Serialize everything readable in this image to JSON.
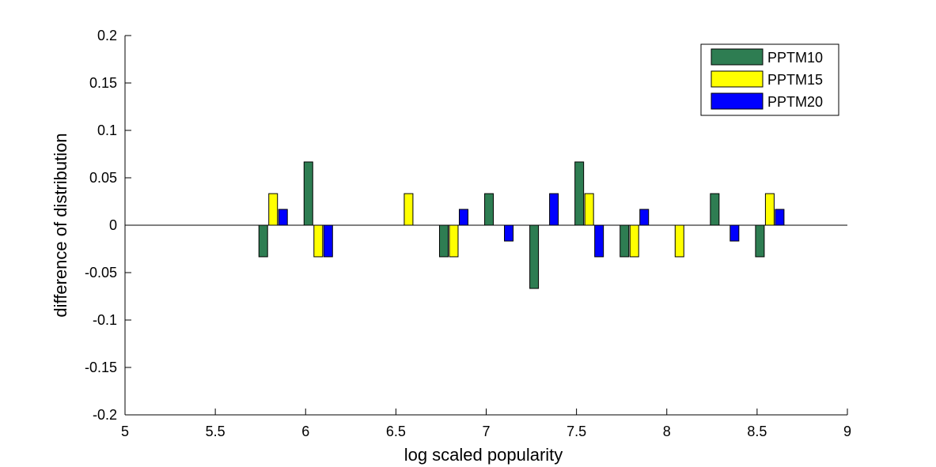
{
  "chart_data": {
    "type": "bar",
    "xlabel": "log scaled popularity",
    "ylabel": "difference of distribution",
    "xlim": [
      5,
      9
    ],
    "ylim": [
      -0.2,
      0.2
    ],
    "xticks": [
      5,
      5.5,
      6,
      6.5,
      7,
      7.5,
      8,
      8.5,
      9
    ],
    "yticks": [
      -0.2,
      -0.15,
      -0.1,
      -0.05,
      0,
      0.05,
      0.1,
      0.15,
      0.2
    ],
    "xtick_labels": [
      "5",
      "5.5",
      "6",
      "6.5",
      "7",
      "7.5",
      "8",
      "8.5",
      "9"
    ],
    "ytick_labels": [
      "-0.2",
      "-0.15",
      "-0.1",
      "-0.05",
      "0",
      "0.05",
      "0.1",
      "0.15",
      "0.2"
    ],
    "grid": false,
    "legend_position": "top-right",
    "x": [
      5.875,
      6.125,
      6.375,
      6.625,
      6.875,
      7.125,
      7.375,
      7.625,
      7.875,
      8.125,
      8.375,
      8.625
    ],
    "series": [
      {
        "name": "PPTM10",
        "color": "#2e7d52",
        "values": [
          -0.0333,
          0.0667,
          0,
          0,
          -0.0333,
          0.0333,
          -0.0667,
          0.0667,
          -0.0333,
          0,
          0.0333,
          -0.0333
        ]
      },
      {
        "name": "PPTM15",
        "color": "#ffff00",
        "values": [
          0.0333,
          -0.0333,
          0,
          0.0333,
          -0.0333,
          0,
          0,
          0.0333,
          -0.0333,
          -0.0333,
          0,
          0.0333
        ]
      },
      {
        "name": "PPTM20",
        "color": "#0000ff",
        "values": [
          0.0167,
          -0.0333,
          0,
          0,
          0.0167,
          -0.0167,
          0.0333,
          -0.0333,
          0.0167,
          0,
          -0.0167,
          0.0167
        ]
      }
    ]
  }
}
